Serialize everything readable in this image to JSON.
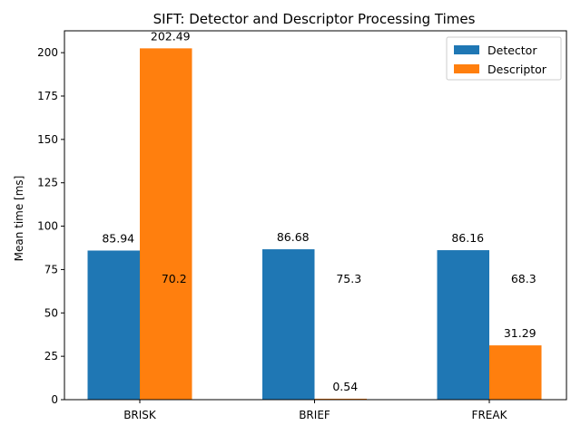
{
  "chart_data": {
    "type": "bar",
    "title": "SIFT: Detector and Descriptor Processing Times",
    "xlabel": "",
    "ylabel": "Mean time [ms]",
    "categories": [
      "BRISK",
      "BRIEF",
      "FREAK"
    ],
    "series": [
      {
        "name": "Detector",
        "values": [
          85.94,
          86.68,
          86.16
        ],
        "color": "#1f77b4"
      },
      {
        "name": "Descriptor",
        "values": [
          202.49,
          0.54,
          31.29
        ],
        "color": "#ff7f0e"
      }
    ],
    "annotations": [
      "70.2",
      "75.3",
      "68.3"
    ],
    "ylim": [
      0,
      212.6
    ],
    "yticks": [
      0,
      25,
      50,
      75,
      100,
      125,
      150,
      175,
      200
    ],
    "legend": "top-right",
    "grid": false
  }
}
